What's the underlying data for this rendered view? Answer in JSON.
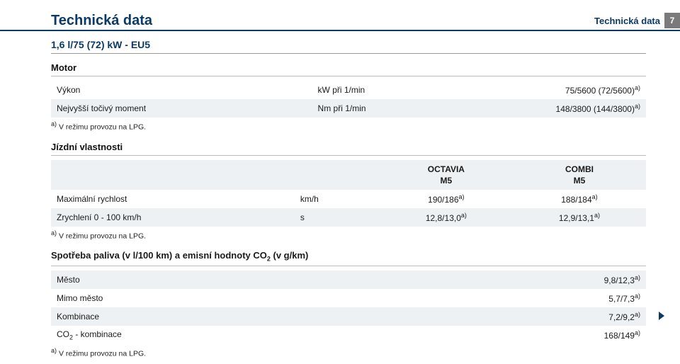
{
  "header": {
    "section": "Technická data",
    "page_number": "7"
  },
  "title": "Technická data",
  "variant": "1,6 l/75 (72) kW - EU5",
  "motor": {
    "section_title": "Motor",
    "rows": [
      {
        "label": "Výkon",
        "unit": "kW při 1/min",
        "value": "75/5600 (72/5600)",
        "sup": "a)"
      },
      {
        "label": "Nejvyšší točivý moment",
        "unit": "Nm při 1/min",
        "value": "148/3800 (144/3800)",
        "sup": "a)"
      }
    ],
    "footnote_marker": "a)",
    "footnote": "V režimu provozu na LPG."
  },
  "driving": {
    "section_title": "Jízdní vlastnosti",
    "col_heads": {
      "c1": "OCTAVIA",
      "c2": "COMBI",
      "sub": "M5"
    },
    "rows": [
      {
        "label": "Maximální rychlost",
        "unit": "km/h",
        "v1": "190/186",
        "sup1": "a)",
        "v2": "188/184",
        "sup2": "a)"
      },
      {
        "label": "Zrychlení 0 - 100 km/h",
        "unit": "s",
        "v1": "12,8/13,0",
        "sup1": "a)",
        "v2": "12,9/13,1",
        "sup2": "a)"
      }
    ],
    "footnote_marker": "a)",
    "footnote": "V režimu provozu na LPG."
  },
  "consumption": {
    "title_prefix": "Spotřeba paliva (v l/100 km) a emisní hodnoty CO",
    "title_sub": "2",
    "title_suffix": " (v g/km)",
    "rows": [
      {
        "label": "Město",
        "value": "9,8/12,3",
        "sup": "a)"
      },
      {
        "label": "Mimo město",
        "value": "5,7/7,3",
        "sup": "a)"
      },
      {
        "label": "Kombinace",
        "value": "7,2/9,2",
        "sup": "a)"
      },
      {
        "label_prefix": "CO",
        "label_sub": "2",
        "label_suffix": " - kombinace",
        "value": "168/149",
        "sup": "a)"
      }
    ],
    "footnote_marker": "a)",
    "footnote": "V režimu provozu na LPG."
  },
  "colors": {
    "brand": "#0b3a66",
    "band": "#eef1f4",
    "badge_bg": "#7a7a7a"
  }
}
